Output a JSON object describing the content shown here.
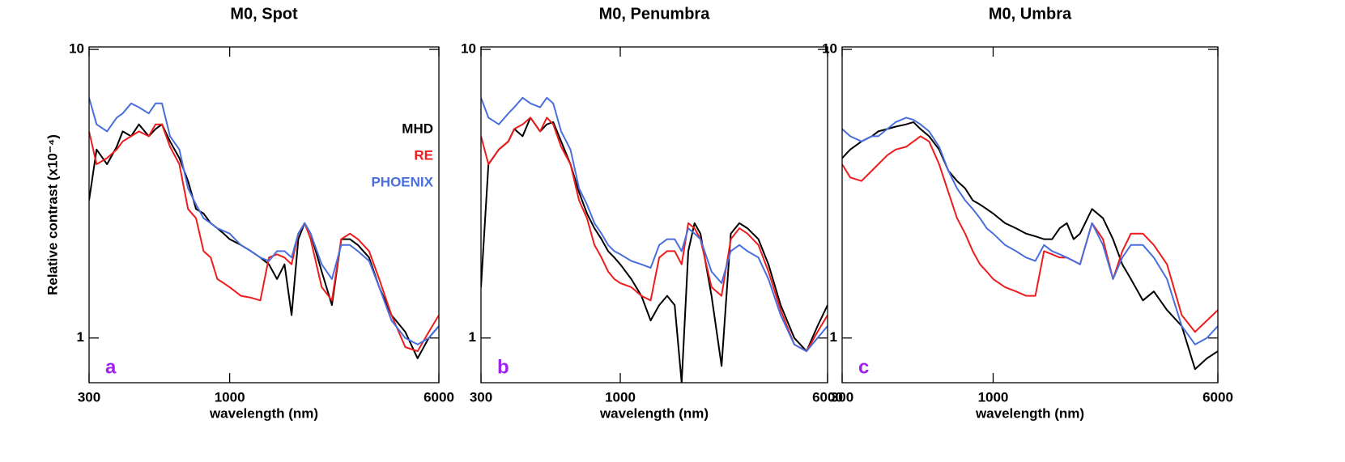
{
  "chart_data": [
    {
      "type": "line",
      "title": "M0, Spot",
      "xlabel": "wavelength (nm)",
      "ylabel": "Relative contrast (x10⁻⁴)",
      "annotation": "a",
      "xscale": "log",
      "yscale": "log",
      "xlim": [
        300,
        6000
      ],
      "ylim": [
        0.7,
        10.2
      ],
      "xticks": [
        300,
        1000,
        6000
      ],
      "yticks": [
        1,
        10
      ],
      "legend": "upper right",
      "x": [
        300,
        320,
        350,
        380,
        400,
        430,
        460,
        500,
        530,
        560,
        600,
        650,
        700,
        750,
        800,
        850,
        900,
        950,
        1000,
        1100,
        1200,
        1300,
        1400,
        1500,
        1600,
        1700,
        1800,
        1900,
        2000,
        2200,
        2400,
        2600,
        2800,
        3000,
        3300,
        3600,
        4000,
        4500,
        5000,
        5500,
        6000
      ],
      "series": [
        {
          "name": "MHD",
          "color": "#000000",
          "values": [
            3.0,
            4.5,
            4.0,
            4.6,
            5.2,
            5.0,
            5.5,
            5.0,
            5.3,
            5.5,
            4.8,
            4.2,
            3.5,
            2.8,
            2.7,
            2.5,
            2.4,
            2.3,
            2.2,
            2.1,
            2.0,
            1.9,
            1.8,
            1.6,
            1.8,
            1.2,
            2.2,
            2.5,
            2.3,
            1.7,
            1.3,
            2.2,
            2.2,
            2.1,
            1.9,
            1.5,
            1.2,
            1.05,
            0.85,
            1.0,
            1.1
          ]
        },
        {
          "name": "RE",
          "color": "#ee1c1c",
          "values": [
            5.2,
            4.0,
            4.2,
            4.5,
            4.8,
            5.0,
            5.2,
            5.0,
            5.5,
            5.5,
            4.6,
            4.0,
            2.8,
            2.6,
            2.0,
            1.9,
            1.6,
            1.55,
            1.5,
            1.4,
            1.38,
            1.35,
            1.9,
            1.95,
            1.9,
            1.8,
            2.3,
            2.5,
            2.2,
            1.5,
            1.35,
            2.2,
            2.3,
            2.2,
            2.0,
            1.6,
            1.2,
            0.93,
            0.9,
            1.05,
            1.2
          ]
        },
        {
          "name": "PHOENIX",
          "color": "#4a6fdc",
          "values": [
            6.8,
            5.5,
            5.2,
            5.8,
            6.0,
            6.5,
            6.3,
            6.0,
            6.5,
            6.5,
            5.0,
            4.5,
            3.3,
            2.9,
            2.6,
            2.5,
            2.4,
            2.35,
            2.3,
            2.1,
            2.0,
            1.9,
            1.85,
            2.0,
            2.0,
            1.9,
            2.3,
            2.5,
            2.3,
            1.8,
            1.6,
            2.1,
            2.1,
            2.0,
            1.85,
            1.5,
            1.15,
            1.0,
            0.95,
            1.0,
            1.1
          ]
        }
      ]
    },
    {
      "type": "line",
      "title": "M0, Penumbra",
      "xlabel": "wavelength (nm)",
      "annotation": "b",
      "xscale": "log",
      "yscale": "log",
      "xlim": [
        300,
        6000
      ],
      "ylim": [
        0.7,
        10.2
      ],
      "xticks": [
        300,
        1000,
        6000
      ],
      "yticks": [
        1,
        10
      ],
      "x": [
        300,
        320,
        350,
        380,
        400,
        430,
        460,
        500,
        530,
        560,
        600,
        650,
        700,
        750,
        800,
        850,
        900,
        950,
        1000,
        1100,
        1200,
        1300,
        1400,
        1500,
        1600,
        1700,
        1800,
        1900,
        2000,
        2200,
        2400,
        2600,
        2800,
        3000,
        3300,
        3600,
        4000,
        4500,
        5000,
        5500,
        6000
      ],
      "series": [
        {
          "color": "#000000",
          "values": [
            1.5,
            4.0,
            4.5,
            4.8,
            5.3,
            5.0,
            5.8,
            5.2,
            5.5,
            5.6,
            4.8,
            4.0,
            3.2,
            2.7,
            2.4,
            2.2,
            2.0,
            1.9,
            1.8,
            1.6,
            1.4,
            1.15,
            1.3,
            1.4,
            1.3,
            0.7,
            2.0,
            2.5,
            2.3,
            1.4,
            0.8,
            2.3,
            2.5,
            2.4,
            2.2,
            1.8,
            1.3,
            1.0,
            0.9,
            1.1,
            1.3
          ]
        },
        {
          "color": "#ee1c1c",
          "values": [
            5.0,
            4.0,
            4.5,
            4.8,
            5.3,
            5.5,
            5.8,
            5.2,
            5.8,
            5.5,
            4.6,
            4.0,
            3.0,
            2.6,
            2.1,
            1.9,
            1.7,
            1.6,
            1.55,
            1.5,
            1.4,
            1.35,
            1.9,
            2.0,
            2.0,
            1.8,
            2.5,
            2.4,
            2.2,
            1.5,
            1.4,
            2.2,
            2.4,
            2.3,
            2.1,
            1.7,
            1.25,
            0.95,
            0.9,
            1.05,
            1.2
          ]
        },
        {
          "color": "#4a6fdc",
          "values": [
            6.8,
            5.8,
            5.5,
            6.0,
            6.3,
            6.8,
            6.5,
            6.3,
            6.8,
            6.5,
            5.2,
            4.5,
            3.3,
            2.9,
            2.5,
            2.3,
            2.1,
            2.0,
            1.95,
            1.85,
            1.8,
            1.75,
            2.1,
            2.2,
            2.2,
            2.0,
            2.4,
            2.3,
            2.2,
            1.7,
            1.55,
            2.0,
            2.1,
            2.0,
            1.9,
            1.6,
            1.2,
            0.95,
            0.9,
            1.0,
            1.1
          ]
        }
      ]
    },
    {
      "type": "line",
      "title": "M0, Umbra",
      "xlabel": "wavelength (nm)",
      "annotation": "c",
      "xscale": "log",
      "yscale": "log",
      "xlim": [
        300,
        6000
      ],
      "ylim": [
        0.7,
        10.2
      ],
      "xticks": [
        300,
        1000,
        6000
      ],
      "yticks": [
        1,
        10
      ],
      "x": [
        300,
        320,
        350,
        380,
        400,
        430,
        460,
        500,
        530,
        560,
        600,
        650,
        700,
        750,
        800,
        850,
        900,
        950,
        1000,
        1100,
        1200,
        1300,
        1400,
        1500,
        1600,
        1700,
        1800,
        1900,
        2000,
        2200,
        2400,
        2600,
        2800,
        3000,
        3300,
        3600,
        4000,
        4500,
        5000,
        5500,
        6000
      ],
      "series": [
        {
          "color": "#000000",
          "values": [
            4.2,
            4.5,
            4.8,
            5.0,
            5.2,
            5.3,
            5.4,
            5.5,
            5.6,
            5.3,
            5.0,
            4.5,
            3.8,
            3.5,
            3.3,
            3.0,
            2.9,
            2.8,
            2.7,
            2.5,
            2.4,
            2.3,
            2.25,
            2.2,
            2.2,
            2.4,
            2.5,
            2.2,
            2.3,
            2.8,
            2.6,
            2.2,
            1.8,
            1.6,
            1.35,
            1.45,
            1.25,
            1.1,
            0.78,
            0.85,
            0.9
          ]
        },
        {
          "color": "#ee1c1c",
          "values": [
            4.0,
            3.6,
            3.5,
            3.8,
            4.0,
            4.3,
            4.5,
            4.6,
            4.8,
            5.0,
            4.8,
            4.0,
            3.2,
            2.6,
            2.3,
            2.0,
            1.8,
            1.7,
            1.6,
            1.5,
            1.45,
            1.4,
            1.4,
            2.0,
            1.95,
            1.9,
            1.9,
            1.85,
            1.8,
            2.5,
            2.2,
            1.6,
            2.0,
            2.3,
            2.3,
            2.1,
            1.8,
            1.2,
            1.05,
            1.15,
            1.25
          ]
        },
        {
          "color": "#4a6fdc",
          "values": [
            5.3,
            5.0,
            4.8,
            5.0,
            5.0,
            5.3,
            5.6,
            5.8,
            5.7,
            5.5,
            5.2,
            4.6,
            3.8,
            3.3,
            3.0,
            2.8,
            2.6,
            2.4,
            2.3,
            2.1,
            2.0,
            1.9,
            1.85,
            2.1,
            2.0,
            1.95,
            1.9,
            1.85,
            1.8,
            2.5,
            2.1,
            1.6,
            1.9,
            2.1,
            2.1,
            1.9,
            1.6,
            1.1,
            0.95,
            1.0,
            1.1
          ]
        }
      ]
    }
  ]
}
